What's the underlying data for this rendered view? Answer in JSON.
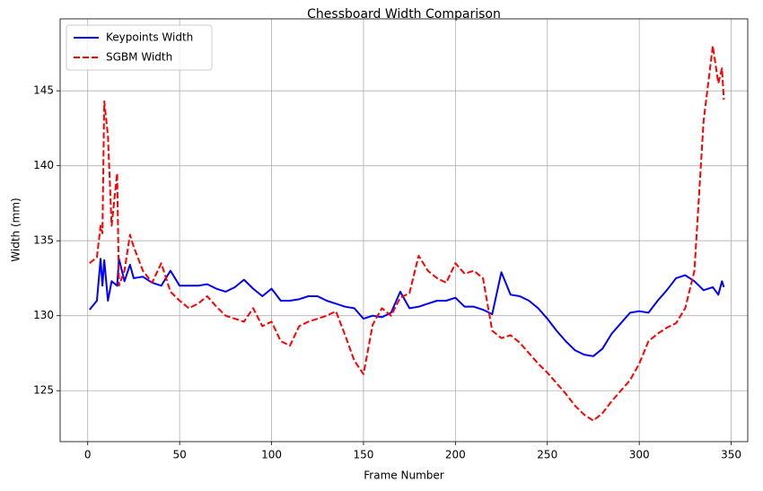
{
  "chart_data": {
    "type": "line",
    "title": "Chessboard Width Comparison",
    "x_label": "Frame Number",
    "y_label": "Width (mm)",
    "x": [
      1,
      5,
      7,
      8,
      9,
      11,
      13,
      16,
      17,
      20,
      23,
      25,
      30,
      35,
      40,
      45,
      50,
      55,
      60,
      65,
      70,
      75,
      80,
      85,
      90,
      95,
      100,
      105,
      110,
      115,
      120,
      125,
      130,
      135,
      140,
      145,
      150,
      155,
      160,
      165,
      170,
      175,
      180,
      185,
      190,
      195,
      200,
      205,
      210,
      215,
      220,
      225,
      230,
      235,
      240,
      245,
      250,
      255,
      260,
      265,
      270,
      275,
      280,
      285,
      290,
      295,
      300,
      305,
      310,
      315,
      320,
      325,
      330,
      335,
      340,
      343,
      345,
      346
    ],
    "series": [
      {
        "name": "Keypoints Width",
        "color": "#0000ff",
        "dash": "solid",
        "values": [
          130.4,
          131,
          133.8,
          132,
          133.7,
          131,
          132.3,
          132,
          133.8,
          132.3,
          133.4,
          132.5,
          132.6,
          132.2,
          132,
          133,
          132,
          132,
          132,
          132.1,
          131.8,
          131.6,
          131.9,
          132.4,
          131.8,
          131.3,
          131.8,
          131,
          131,
          131.1,
          131.3,
          131.3,
          131,
          130.8,
          130.6,
          130.5,
          129.8,
          130,
          129.9,
          130.2,
          131.6,
          130.5,
          130.6,
          130.8,
          131,
          131,
          131.2,
          130.6,
          130.6,
          130.4,
          130.1,
          132.9,
          131.4,
          131.3,
          131,
          130.5,
          129.8,
          129,
          128.3,
          127.7,
          127.4,
          127.3,
          127.8,
          128.8,
          129.5,
          130.2,
          130.3,
          130.2,
          131,
          131.7,
          132.5,
          132.7,
          132.3,
          131.7,
          131.9,
          131.4,
          132.3,
          131.9
        ]
      },
      {
        "name": "SGBM Width",
        "color": "#ff0000",
        "dash": "dashed",
        "values": [
          133.5,
          133.9,
          136,
          135.5,
          144.3,
          142,
          136,
          139.5,
          132,
          133,
          135.4,
          134.6,
          133,
          132.2,
          133.5,
          131.6,
          131,
          130.5,
          130.8,
          131.3,
          130.6,
          130,
          129.8,
          129.6,
          130.5,
          129.3,
          129.6,
          128.3,
          128,
          129.3,
          129.6,
          129.8,
          130,
          130.3,
          128.7,
          127,
          126.1,
          129.4,
          130.5,
          130,
          131.2,
          131.5,
          134,
          133,
          132.5,
          132.2,
          133.5,
          132.8,
          133,
          132.5,
          129,
          128.5,
          128.7,
          128.2,
          127.5,
          126.8,
          126.2,
          125.5,
          124.8,
          124,
          123.4,
          123,
          123.5,
          124.3,
          125,
          125.7,
          126.8,
          128.3,
          128.8,
          129.2,
          129.5,
          130.5,
          133,
          143,
          148,
          145.5,
          146.5,
          144.4
        ]
      }
    ],
    "xlim": [
      -15,
      359
    ],
    "ylim": [
      121.6,
      149.8
    ],
    "xticks": [
      0,
      50,
      100,
      150,
      200,
      250,
      300,
      350
    ],
    "yticks": [
      125,
      130,
      135,
      140,
      145
    ],
    "grid": true,
    "legend": "upper-left"
  }
}
